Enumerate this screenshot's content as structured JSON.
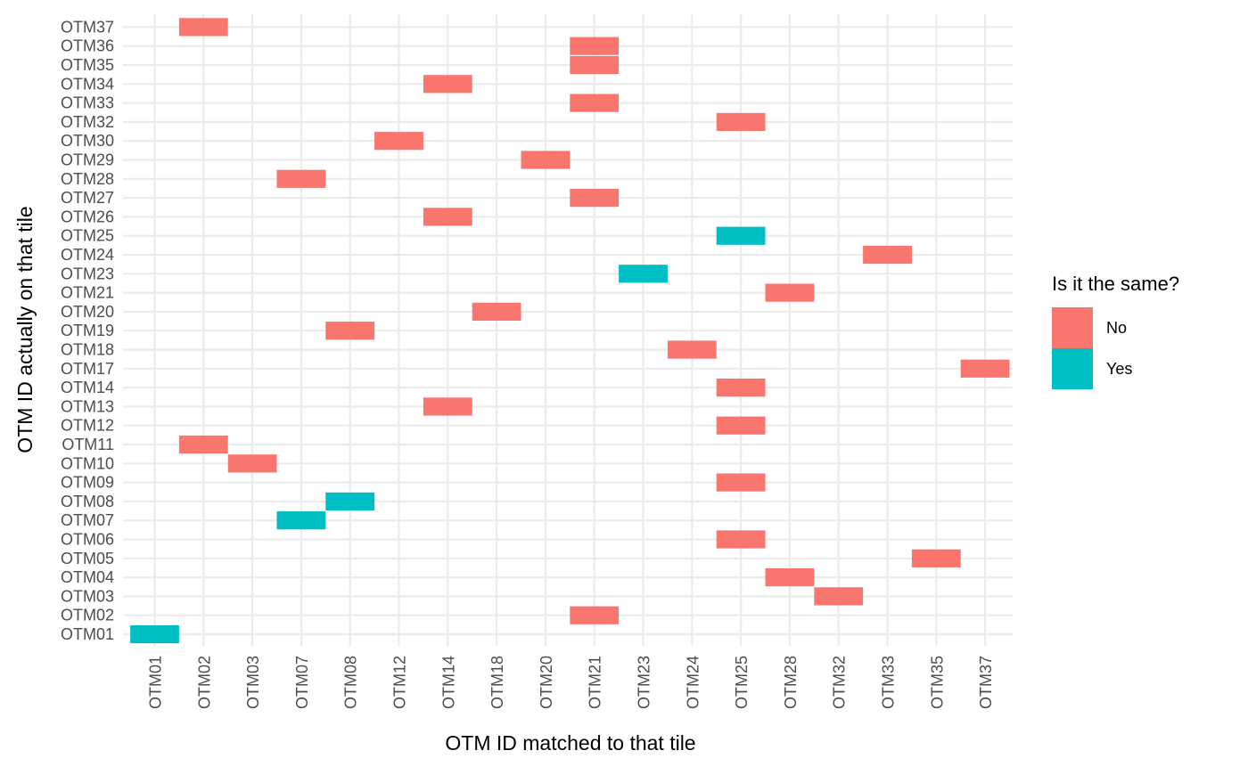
{
  "chart_data": {
    "type": "heatmap",
    "xlabel": "OTM ID matched to that tile",
    "ylabel": "OTM ID actually on that tile",
    "x_categories": [
      "OTM01",
      "OTM02",
      "OTM03",
      "OTM07",
      "OTM08",
      "OTM12",
      "OTM14",
      "OTM18",
      "OTM20",
      "OTM21",
      "OTM23",
      "OTM24",
      "OTM25",
      "OTM28",
      "OTM32",
      "OTM33",
      "OTM35",
      "OTM37"
    ],
    "y_categories": [
      "OTM01",
      "OTM02",
      "OTM03",
      "OTM04",
      "OTM05",
      "OTM06",
      "OTM07",
      "OTM08",
      "OTM09",
      "OTM10",
      "OTM11",
      "OTM12",
      "OTM13",
      "OTM14",
      "OTM17",
      "OTM18",
      "OTM19",
      "OTM20",
      "OTM21",
      "OTM23",
      "OTM24",
      "OTM25",
      "OTM26",
      "OTM27",
      "OTM28",
      "OTM29",
      "OTM30",
      "OTM32",
      "OTM33",
      "OTM34",
      "OTM35",
      "OTM36",
      "OTM37"
    ],
    "tiles": [
      {
        "y": "OTM01",
        "x": "OTM01",
        "same": "Yes"
      },
      {
        "y": "OTM02",
        "x": "OTM21",
        "same": "No"
      },
      {
        "y": "OTM03",
        "x": "OTM32",
        "same": "No"
      },
      {
        "y": "OTM04",
        "x": "OTM28",
        "same": "No"
      },
      {
        "y": "OTM05",
        "x": "OTM35",
        "same": "No"
      },
      {
        "y": "OTM06",
        "x": "OTM25",
        "same": "No"
      },
      {
        "y": "OTM07",
        "x": "OTM07",
        "same": "Yes"
      },
      {
        "y": "OTM08",
        "x": "OTM08",
        "same": "Yes"
      },
      {
        "y": "OTM09",
        "x": "OTM25",
        "same": "No"
      },
      {
        "y": "OTM10",
        "x": "OTM03",
        "same": "No"
      },
      {
        "y": "OTM11",
        "x": "OTM02",
        "same": "No"
      },
      {
        "y": "OTM12",
        "x": "OTM25",
        "same": "No"
      },
      {
        "y": "OTM13",
        "x": "OTM14",
        "same": "No"
      },
      {
        "y": "OTM14",
        "x": "OTM25",
        "same": "No"
      },
      {
        "y": "OTM17",
        "x": "OTM37",
        "same": "No"
      },
      {
        "y": "OTM18",
        "x": "OTM24",
        "same": "No"
      },
      {
        "y": "OTM19",
        "x": "OTM08",
        "same": "No"
      },
      {
        "y": "OTM20",
        "x": "OTM18",
        "same": "No"
      },
      {
        "y": "OTM21",
        "x": "OTM28",
        "same": "No"
      },
      {
        "y": "OTM23",
        "x": "OTM23",
        "same": "Yes"
      },
      {
        "y": "OTM24",
        "x": "OTM33",
        "same": "No"
      },
      {
        "y": "OTM25",
        "x": "OTM25",
        "same": "Yes"
      },
      {
        "y": "OTM26",
        "x": "OTM14",
        "same": "No"
      },
      {
        "y": "OTM27",
        "x": "OTM21",
        "same": "No"
      },
      {
        "y": "OTM28",
        "x": "OTM07",
        "same": "No"
      },
      {
        "y": "OTM29",
        "x": "OTM20",
        "same": "No"
      },
      {
        "y": "OTM30",
        "x": "OTM12",
        "same": "No"
      },
      {
        "y": "OTM32",
        "x": "OTM25",
        "same": "No"
      },
      {
        "y": "OTM33",
        "x": "OTM21",
        "same": "No"
      },
      {
        "y": "OTM34",
        "x": "OTM14",
        "same": "No"
      },
      {
        "y": "OTM35",
        "x": "OTM21",
        "same": "No"
      },
      {
        "y": "OTM36",
        "x": "OTM21",
        "same": "No"
      },
      {
        "y": "OTM37",
        "x": "OTM02",
        "same": "No"
      }
    ],
    "legend": {
      "title": "Is it the same?",
      "entries": [
        {
          "label": "No",
          "color": "#F8766D"
        },
        {
          "label": "Yes",
          "color": "#00BFC4"
        }
      ],
      "placement": "right"
    },
    "grid": true
  }
}
